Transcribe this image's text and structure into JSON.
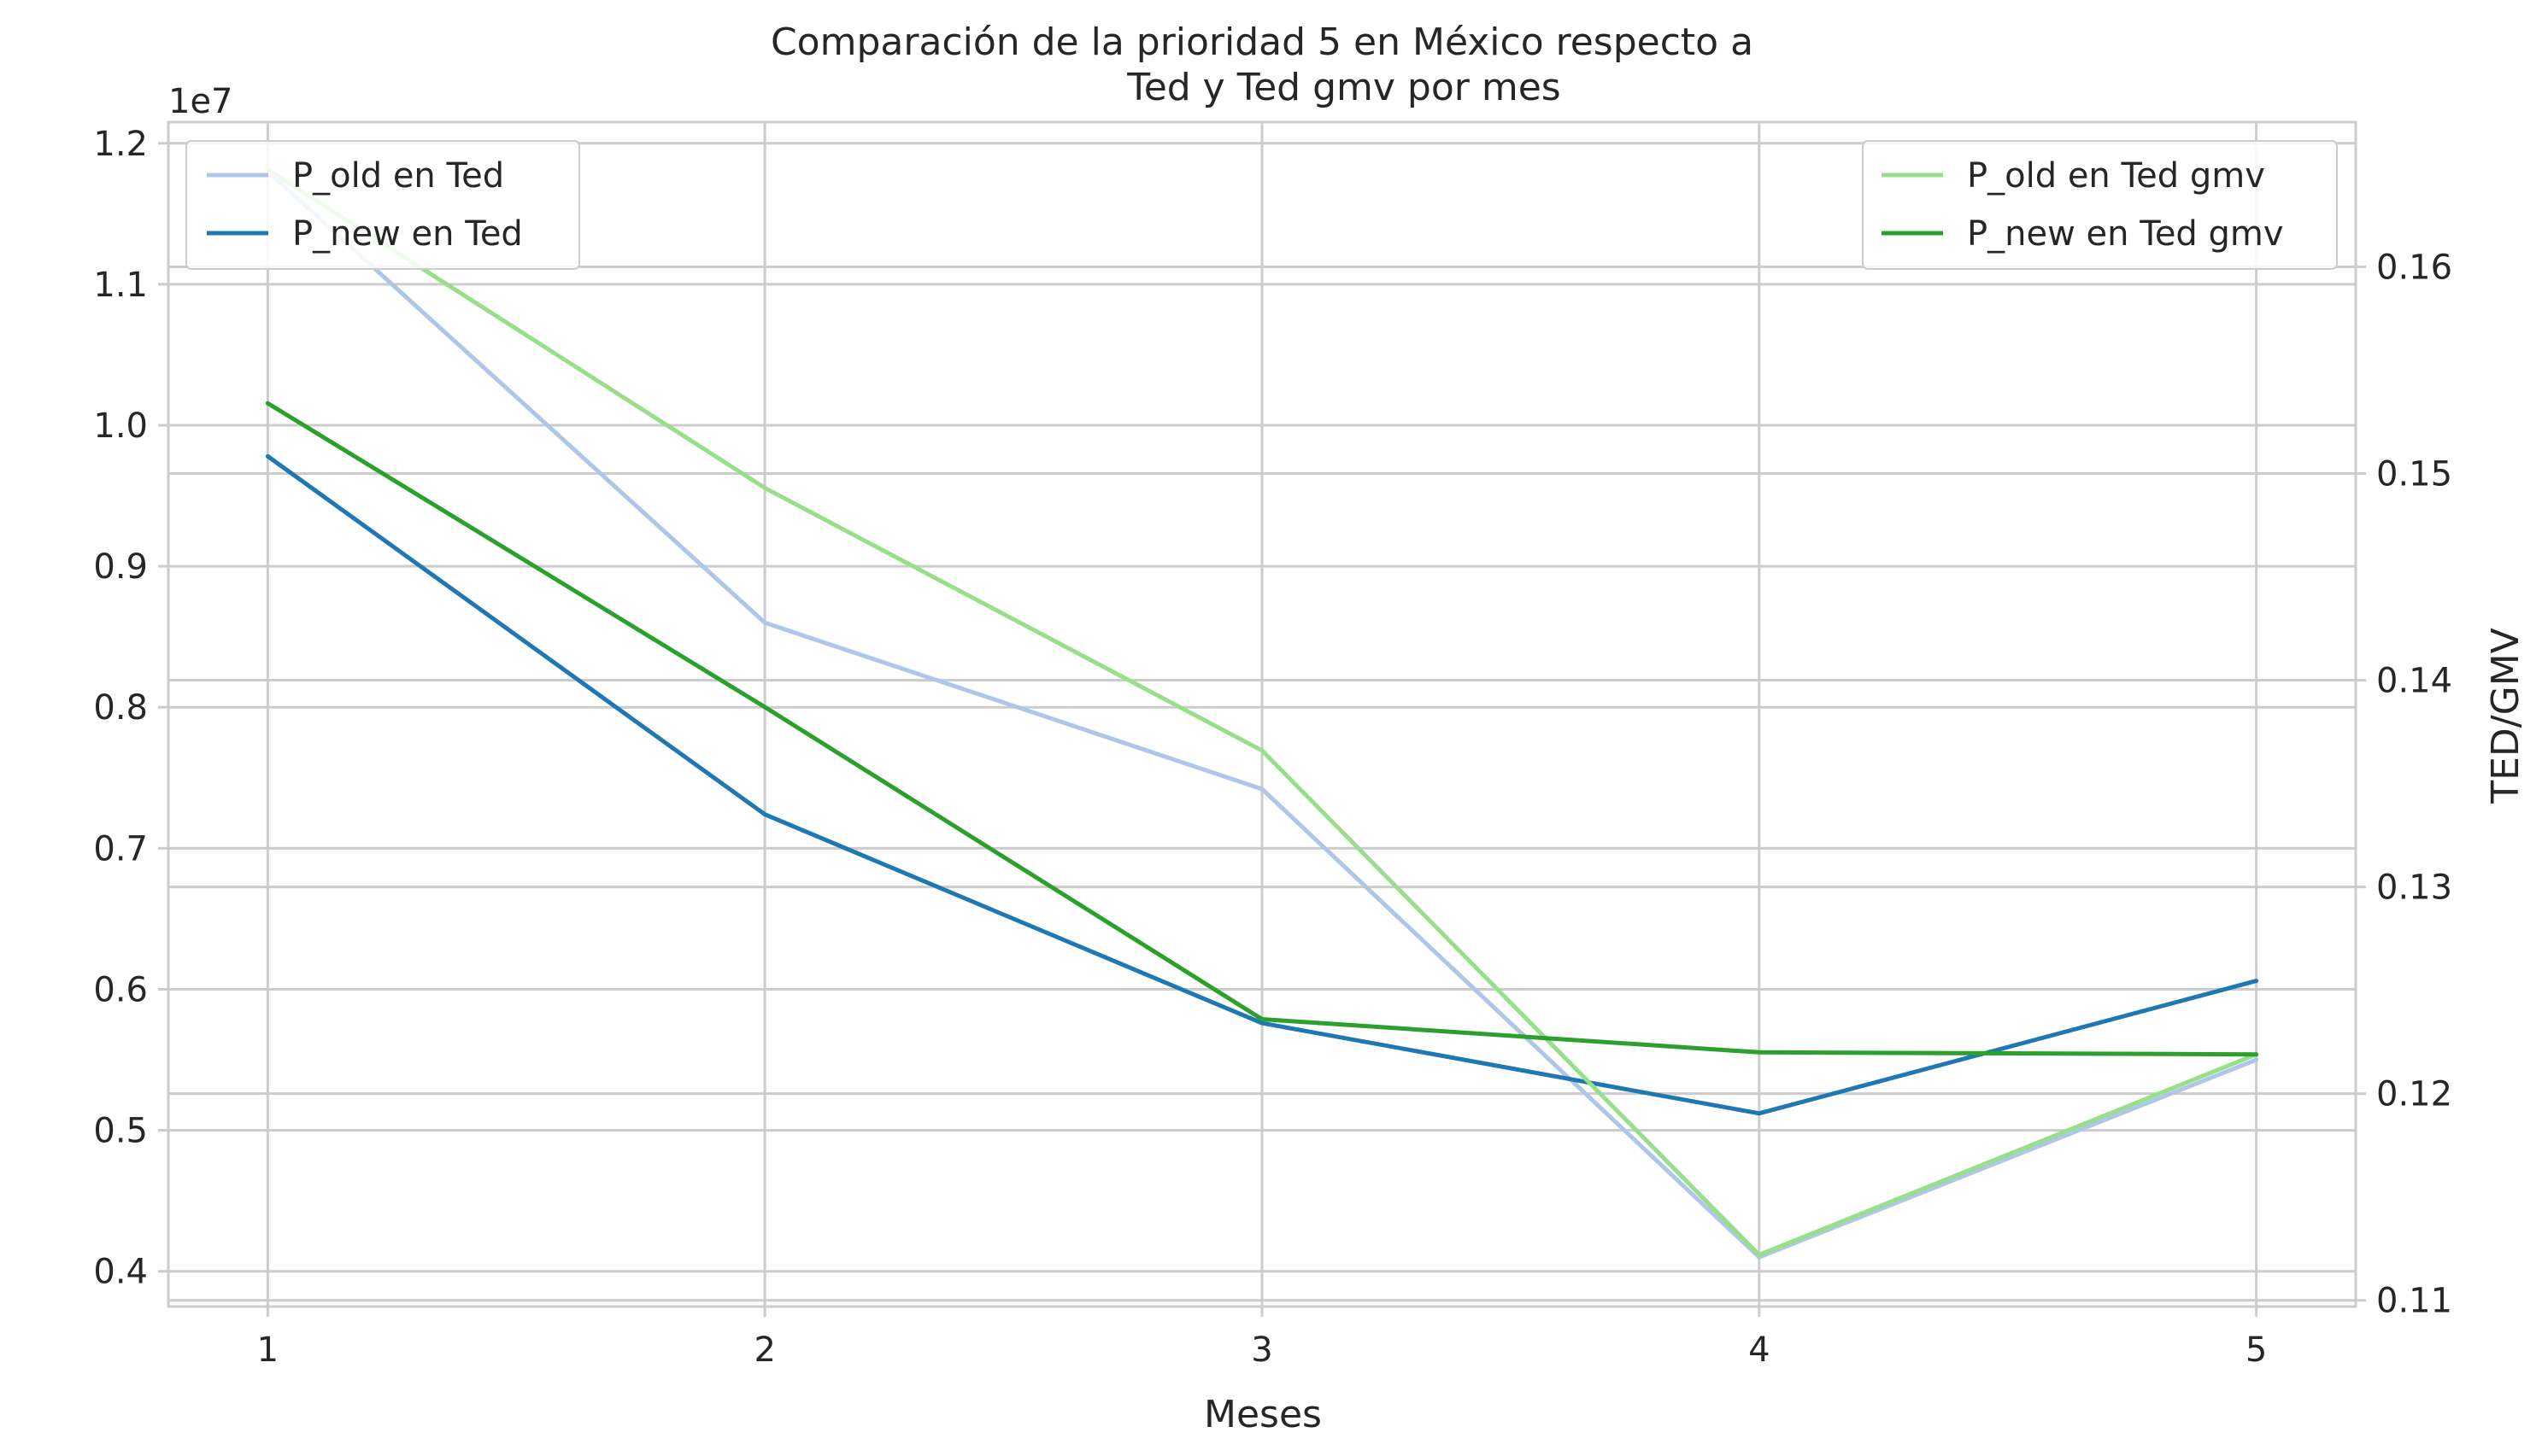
{
  "chart_data": {
    "type": "line",
    "title_line1": "Comparación de la prioridad 5 en México respecto a",
    "title_line2": "Ted y Ted gmv por mes",
    "xlabel": "Meses",
    "ylabel_left": "",
    "ylabel_right": "TED/GMV",
    "y_offset_text": "1e7",
    "x": [
      1,
      2,
      3,
      4,
      5
    ],
    "xlim": [
      0.8,
      5.2
    ],
    "x_ticks": [
      "1",
      "2",
      "3",
      "4",
      "5"
    ],
    "left_axis": {
      "ylim": [
        0.375,
        1.215
      ],
      "ticks": [
        "0.4",
        "0.5",
        "0.6",
        "0.7",
        "0.8",
        "0.9",
        "1.0",
        "1.1",
        "1.2"
      ],
      "tick_values": [
        0.4,
        0.5,
        0.6,
        0.7,
        0.8,
        0.9,
        1.0,
        1.1,
        1.2
      ],
      "legend_loc": "upper left",
      "series": [
        {
          "name": "P_old en Ted",
          "color": "#aec7e8",
          "values": [
            1.18,
            0.86,
            0.742,
            0.41,
            0.55
          ]
        },
        {
          "name": "P_new en Ted",
          "color": "#1f77b4",
          "values": [
            0.978,
            0.724,
            0.576,
            0.512,
            0.606
          ]
        }
      ]
    },
    "right_axis": {
      "ylim": [
        0.1097,
        0.167
      ],
      "ticks": [
        "0.11",
        "0.12",
        "0.13",
        "0.14",
        "0.15",
        "0.16"
      ],
      "tick_values": [
        0.11,
        0.12,
        0.13,
        0.14,
        0.15,
        0.16
      ],
      "legend_loc": "upper right",
      "series": [
        {
          "name": "P_old en Ted gmv",
          "color": "#98df8a",
          "values": [
            0.1647,
            0.1493,
            0.1366,
            0.1122,
            0.1219
          ]
        },
        {
          "name": "P_new en Ted gmv",
          "color": "#2ca02c",
          "values": [
            0.1534,
            0.1387,
            0.1236,
            0.122,
            0.1219
          ]
        }
      ]
    },
    "grid": true
  }
}
